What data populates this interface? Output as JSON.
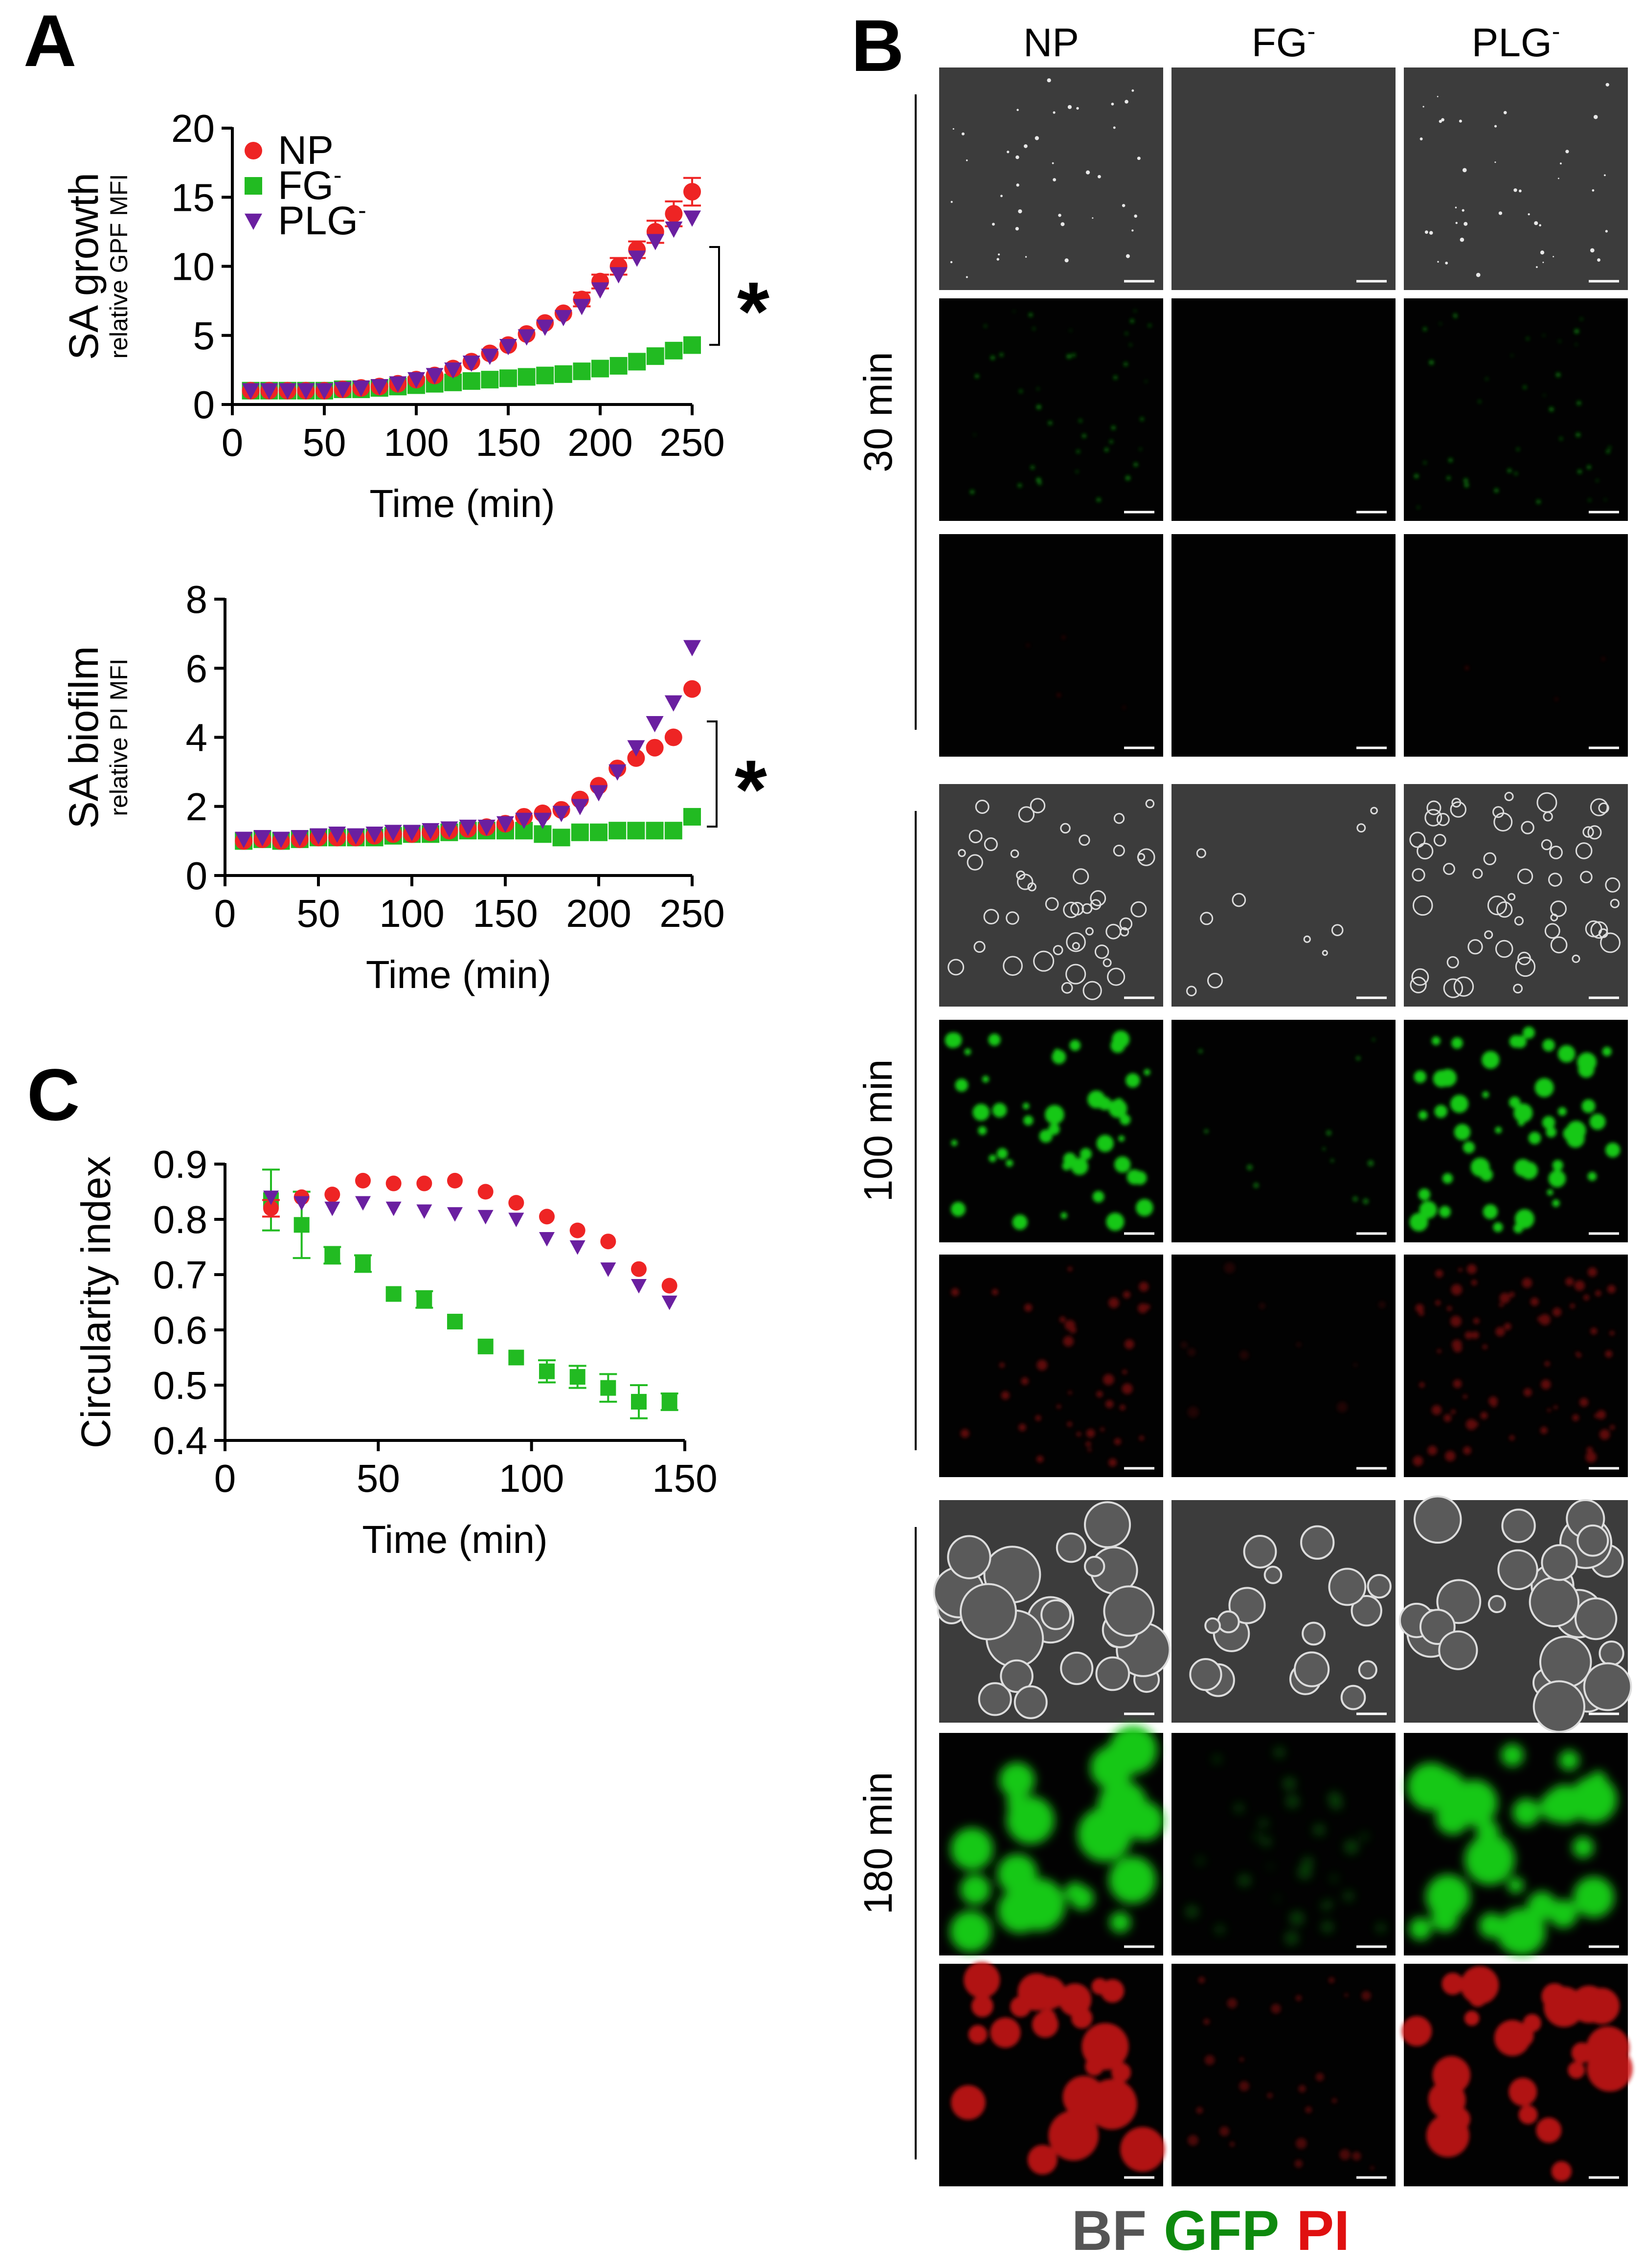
{
  "panels": {
    "a": "A",
    "b": "B",
    "c": "C"
  },
  "colors": {
    "np": "#ee2424",
    "fg": "#22bb22",
    "plg": "#6a1fa0",
    "bf": "#555555",
    "gfp": "#0e8a0e",
    "pi": "#e01010"
  },
  "chart_data": [
    {
      "type": "scatter",
      "panel": "A",
      "ylabel": "SA growth",
      "ylabel_sub": "relative GPF MFI",
      "xlabel": "Time (min)",
      "xlim": [
        0,
        250
      ],
      "ylim": [
        0,
        20
      ],
      "xticks": [
        "0",
        "50",
        "100",
        "150",
        "200",
        "250"
      ],
      "yticks": [
        "0",
        "5",
        "10",
        "15",
        "20"
      ],
      "significance": "*",
      "x": [
        10,
        20,
        30,
        40,
        50,
        60,
        70,
        80,
        90,
        100,
        110,
        120,
        130,
        140,
        150,
        160,
        170,
        180,
        190,
        200,
        210,
        220,
        230,
        240,
        250
      ],
      "series": [
        {
          "name": "NP",
          "sup": "",
          "marker": "circle",
          "values": [
            1.0,
            1.0,
            1.0,
            1.0,
            1.0,
            1.1,
            1.2,
            1.3,
            1.5,
            1.8,
            2.1,
            2.6,
            3.1,
            3.7,
            4.3,
            5.1,
            5.9,
            6.6,
            7.6,
            8.9,
            10.0,
            11.2,
            12.5,
            13.8,
            15.4
          ],
          "errors": [
            0.1,
            0.1,
            0.1,
            0.1,
            0.1,
            0.1,
            0.1,
            0.1,
            0.1,
            0.1,
            0.1,
            0.1,
            0.2,
            0.2,
            0.2,
            0.2,
            0.2,
            0.3,
            0.5,
            0.5,
            0.6,
            0.6,
            0.8,
            0.9,
            1.0
          ]
        },
        {
          "name": "FG",
          "sup": "-",
          "marker": "square",
          "values": [
            1.0,
            1.0,
            1.0,
            1.0,
            1.0,
            1.1,
            1.1,
            1.2,
            1.3,
            1.4,
            1.5,
            1.6,
            1.7,
            1.8,
            1.9,
            2.0,
            2.1,
            2.2,
            2.4,
            2.6,
            2.8,
            3.1,
            3.5,
            3.9,
            4.3
          ],
          "errors": [
            0,
            0,
            0,
            0,
            0,
            0,
            0,
            0,
            0,
            0,
            0,
            0,
            0,
            0,
            0,
            0,
            0,
            0,
            0,
            0,
            0,
            0,
            0,
            0,
            0
          ]
        },
        {
          "name": "PLG",
          "sup": "-",
          "marker": "triangle",
          "values": [
            1.0,
            1.0,
            1.0,
            1.0,
            1.0,
            1.1,
            1.2,
            1.3,
            1.5,
            1.8,
            2.1,
            2.5,
            3.0,
            3.5,
            4.2,
            4.9,
            5.6,
            6.3,
            7.1,
            8.3,
            9.4,
            10.6,
            11.8,
            12.7,
            13.5
          ],
          "errors": [
            0,
            0,
            0,
            0,
            0,
            0,
            0,
            0,
            0,
            0,
            0,
            0,
            0,
            0,
            0,
            0,
            0,
            0,
            0,
            0,
            0,
            0,
            0,
            0,
            0
          ]
        }
      ]
    },
    {
      "type": "scatter",
      "panel": "A",
      "ylabel": "SA biofilm",
      "ylabel_sub": "relative PI MFI",
      "xlabel": "Time (min)",
      "xlim": [
        0,
        250
      ],
      "ylim": [
        0,
        8
      ],
      "xticks": [
        "0",
        "50",
        "100",
        "150",
        "200",
        "250"
      ],
      "yticks": [
        "0",
        "2",
        "4",
        "6",
        "8"
      ],
      "significance": "*",
      "x": [
        10,
        20,
        30,
        40,
        50,
        60,
        70,
        80,
        90,
        100,
        110,
        120,
        130,
        140,
        150,
        160,
        170,
        180,
        190,
        200,
        210,
        220,
        230,
        240,
        250
      ],
      "series": [
        {
          "name": "NP",
          "values": [
            1.0,
            1.05,
            1.0,
            1.05,
            1.1,
            1.1,
            1.1,
            1.15,
            1.2,
            1.2,
            1.25,
            1.3,
            1.35,
            1.4,
            1.5,
            1.7,
            1.8,
            1.9,
            2.2,
            2.6,
            3.1,
            3.4,
            3.7,
            4.0,
            5.4
          ]
        },
        {
          "name": "FG",
          "values": [
            1.0,
            1.05,
            1.0,
            1.05,
            1.1,
            1.1,
            1.1,
            1.1,
            1.15,
            1.2,
            1.2,
            1.25,
            1.3,
            1.3,
            1.3,
            1.3,
            1.2,
            1.1,
            1.25,
            1.25,
            1.3,
            1.3,
            1.3,
            1.3,
            1.7
          ]
        },
        {
          "name": "PLG",
          "values": [
            1.05,
            1.1,
            1.05,
            1.1,
            1.15,
            1.2,
            1.15,
            1.2,
            1.25,
            1.25,
            1.3,
            1.35,
            1.4,
            1.4,
            1.5,
            1.6,
            1.6,
            1.8,
            2.0,
            2.4,
            3.0,
            3.7,
            4.4,
            5.0,
            6.6
          ]
        }
      ]
    },
    {
      "type": "scatter",
      "panel": "C",
      "ylabel": "Circularity index",
      "xlabel": "Time (min)",
      "xlim": [
        0,
        150
      ],
      "ylim": [
        0.4,
        0.9
      ],
      "xticks": [
        "0",
        "50",
        "100",
        "150"
      ],
      "yticks": [
        "0.4",
        "0.5",
        "0.6",
        "0.7",
        "0.8",
        "0.9"
      ],
      "x": [
        15,
        25,
        35,
        45,
        55,
        65,
        75,
        85,
        95,
        105,
        115,
        125,
        135,
        145
      ],
      "series": [
        {
          "name": "NP",
          "values": [
            0.82,
            0.84,
            0.845,
            0.87,
            0.865,
            0.865,
            0.87,
            0.85,
            0.83,
            0.805,
            0.78,
            0.76,
            0.71,
            0.68
          ],
          "errors": [
            0.015,
            0.01,
            0.005,
            0.005,
            0.005,
            0.005,
            0.005,
            0.005,
            0.005,
            0.005,
            0.005,
            0.005,
            0.005,
            0.005
          ]
        },
        {
          "name": "FG",
          "values": [
            0.835,
            0.79,
            0.735,
            0.72,
            0.665,
            0.655,
            0.615,
            0.57,
            0.55,
            0.525,
            0.515,
            0.495,
            0.47,
            0.47
          ],
          "errors": [
            0.055,
            0.06,
            0.015,
            0.015,
            0.005,
            0.015,
            0.005,
            0.005,
            0.005,
            0.02,
            0.02,
            0.025,
            0.03,
            0.015
          ]
        },
        {
          "name": "PLG",
          "values": [
            0.84,
            0.83,
            0.82,
            0.83,
            0.82,
            0.815,
            0.81,
            0.805,
            0.8,
            0.765,
            0.75,
            0.71,
            0.68,
            0.65
          ],
          "errors": [
            0.01,
            0.01,
            0.005,
            0.005,
            0.005,
            0.005,
            0.01,
            0.01,
            0.005,
            0.005,
            0.005,
            0.005,
            0.005,
            0.005
          ]
        }
      ]
    }
  ],
  "micrographs": {
    "columns": [
      {
        "name": "NP",
        "sup": ""
      },
      {
        "name": "FG",
        "sup": "-"
      },
      {
        "name": "PLG",
        "sup": "-"
      }
    ],
    "timepoints": [
      "30 min",
      "100 min",
      "180 min"
    ],
    "channels": [
      "BF",
      "GFP",
      "PI"
    ],
    "legend": {
      "bf": "BF",
      "gfp": "GFP",
      "pi": "PI"
    }
  }
}
